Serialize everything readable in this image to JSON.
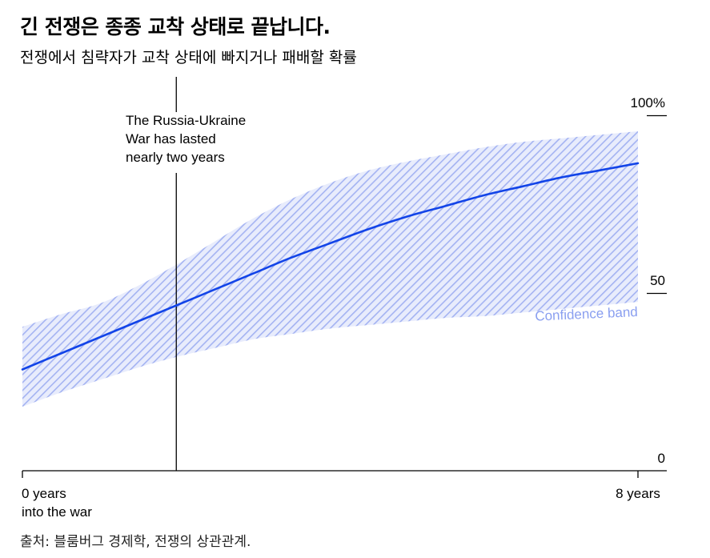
{
  "title": "긴 전쟁은 종종 교착 상태로 끝납니다.",
  "subtitle": "전쟁에서 침략자가 교착 상태에 빠지거나 패배할 확률",
  "source": "출처: 블룸버그 경제학, 전쟁의 상관관계.",
  "chart_data": {
    "type": "line",
    "title": "긴 전쟁은 종종 교착 상태로 끝납니다.",
    "subtitle": "전쟁에서 침략자가 교착 상태에 빠지거나 패배할 확률",
    "xlabel": "",
    "ylabel": "",
    "xlim": [
      0,
      8
    ],
    "ylim": [
      0,
      100
    ],
    "x_tick_labels": [
      {
        "x": 0,
        "lines": [
          "0 years",
          "into the war"
        ]
      },
      {
        "x": 8,
        "lines": [
          "8 years"
        ]
      }
    ],
    "y_tick_labels": [
      {
        "y": 100,
        "label": "100%"
      },
      {
        "y": 50,
        "label": "50"
      },
      {
        "y": 0,
        "label": "0"
      }
    ],
    "grid": false,
    "series": [
      {
        "color": "#1244e8",
        "x": [
          0,
          0.5,
          1,
          1.5,
          2,
          2.5,
          3,
          3.5,
          4,
          4.5,
          5,
          5.5,
          6,
          6.5,
          7,
          7.5,
          8
        ],
        "y": [
          28.5,
          33,
          37.5,
          42,
          46.5,
          51,
          55.5,
          60,
          64,
          68,
          71.5,
          74.5,
          77.5,
          80,
          82.5,
          84.5,
          86.5
        ]
      }
    ],
    "band": {
      "name": "Confidence band",
      "color": "#8a9ff0",
      "x": [
        0,
        0.5,
        1,
        1.5,
        2,
        2.5,
        3,
        3.5,
        4,
        4.5,
        5,
        5.5,
        6,
        6.5,
        7,
        7.5,
        8
      ],
      "lower": [
        18,
        22,
        25.5,
        29,
        32,
        34.5,
        37,
        38.5,
        40,
        41,
        42,
        43,
        43.5,
        44.5,
        45.5,
        46.5,
        47.5
      ],
      "upper": [
        40.5,
        44,
        47,
        52,
        58,
        64.5,
        71,
        76.5,
        81,
        84.5,
        87,
        89,
        91,
        92.5,
        93.5,
        94.5,
        95.5
      ]
    },
    "annotations": [
      {
        "x": 2,
        "lines": [
          "The Russia-Ukraine",
          "War has lasted",
          "nearly two years"
        ]
      }
    ]
  }
}
